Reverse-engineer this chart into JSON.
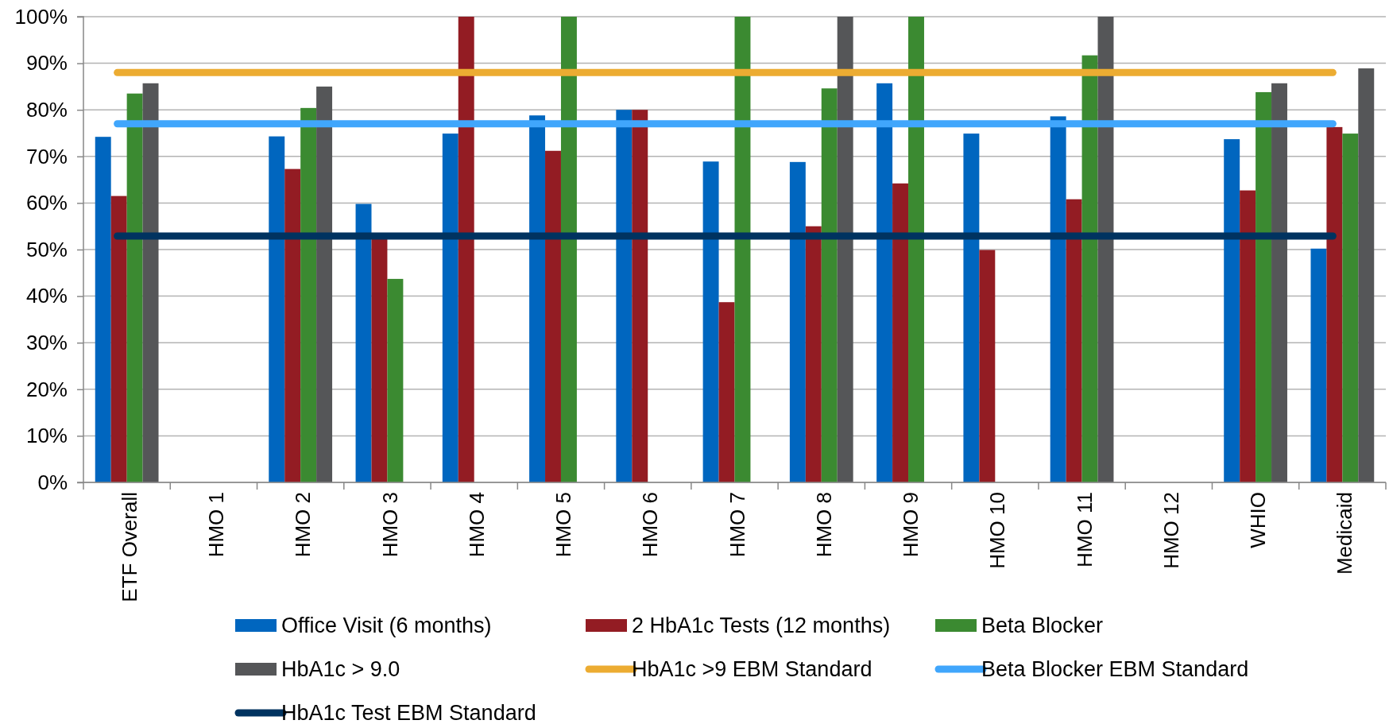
{
  "chart_data": {
    "type": "bar",
    "categories": [
      "ETF Overall",
      "HMO 1",
      "HMO 2",
      "HMO 3",
      "HMO 4",
      "HMO 5",
      "HMO 6",
      "HMO 7",
      "HMO 8",
      "HMO 9",
      "HMO 10",
      "HMO 11",
      "HMO 12",
      "WHIO",
      "Medicaid"
    ],
    "series": [
      {
        "name": "Office Visit (6 months)",
        "color": "#0066bf",
        "values": [
          74.2,
          null,
          74.3,
          59.8,
          74.9,
          78.8,
          80,
          68.9,
          68.8,
          85.7,
          74.9,
          78.6,
          null,
          73.7,
          50.2
        ]
      },
      {
        "name": "2 HbA1c Tests (12 months)",
        "color": "#931c23",
        "values": [
          61.5,
          null,
          67.3,
          52.5,
          100,
          71.2,
          80,
          38.7,
          55,
          64.2,
          49.9,
          60.8,
          null,
          62.7,
          76.3
        ]
      },
      {
        "name": "Beta Blocker",
        "color": "#3b8a31",
        "values": [
          83.5,
          null,
          80.4,
          43.7,
          null,
          100,
          null,
          100,
          84.6,
          100,
          null,
          91.7,
          null,
          83.8,
          74.9
        ]
      },
      {
        "name": "HbA1c > 9.0",
        "color": "#555658",
        "values": [
          85.7,
          null,
          85,
          null,
          null,
          null,
          null,
          null,
          100,
          null,
          null,
          100,
          null,
          85.7,
          88.9
        ]
      }
    ],
    "ref_lines": [
      {
        "axis": "y",
        "value": 88,
        "label": "HbA1c >9 EBM Standard",
        "color": "#ecac32"
      },
      {
        "axis": "y",
        "value": 77,
        "label": "Beta Blocker EBM Standard",
        "color": "#40a6fc"
      },
      {
        "axis": "y",
        "value": 52.9,
        "label": "HbA1c Test EBM Standard",
        "color": "#003360"
      }
    ],
    "ylim": [
      0,
      100
    ],
    "yticks": [
      {
        "value": 0,
        "label": "0%"
      },
      {
        "value": 10,
        "label": "10%"
      },
      {
        "value": 20,
        "label": "20%"
      },
      {
        "value": 30,
        "label": "30%"
      },
      {
        "value": 40,
        "label": "40%"
      },
      {
        "value": 50,
        "label": "50%"
      },
      {
        "value": 60,
        "label": "60%"
      },
      {
        "value": 70,
        "label": "70%"
      },
      {
        "value": 80,
        "label": "80%"
      },
      {
        "value": 90,
        "label": "90%"
      },
      {
        "value": 100,
        "label": "100%"
      }
    ],
    "grid": "y",
    "legend": "bottom"
  }
}
